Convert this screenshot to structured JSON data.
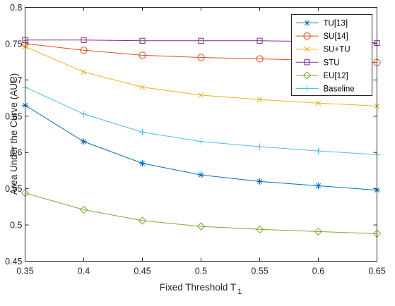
{
  "chart_data": {
    "type": "line",
    "title": "",
    "xlabel": "Fixed Threshold T",
    "xlabel_subscript": "1",
    "ylabel": "Area Under the Curve (AUC)",
    "xlim": [
      0.35,
      0.65
    ],
    "ylim": [
      0.45,
      0.8
    ],
    "x": [
      0.35,
      0.4,
      0.45,
      0.5,
      0.55,
      0.6,
      0.65
    ],
    "x_ticks": [
      "0.35",
      "0.4",
      "0.45",
      "0.5",
      "0.55",
      "0.6",
      "0.65"
    ],
    "y_ticks": [
      "0.45",
      "0.5",
      "0.55",
      "0.6",
      "0.65",
      "0.7",
      "0.75",
      "0.8"
    ],
    "grid": false,
    "legend_position": "top-right",
    "series": [
      {
        "name": "TU[13]",
        "color": "#0072BD",
        "marker": "asterisk",
        "values": [
          0.665,
          0.615,
          0.585,
          0.569,
          0.56,
          0.554,
          0.548
        ]
      },
      {
        "name": "SU[14]",
        "color": "#D95319",
        "marker": "circle",
        "values": [
          0.75,
          0.741,
          0.734,
          0.731,
          0.729,
          0.727,
          0.724
        ]
      },
      {
        "name": "SU+TU",
        "color": "#EDB120",
        "marker": "x",
        "values": [
          0.746,
          0.711,
          0.69,
          0.679,
          0.673,
          0.668,
          0.664
        ]
      },
      {
        "name": "STU",
        "color": "#7E2F8E",
        "marker": "square",
        "values": [
          0.755,
          0.755,
          0.754,
          0.754,
          0.754,
          0.753,
          0.751
        ]
      },
      {
        "name": "EU[12]",
        "color": "#77AC30",
        "marker": "diamond",
        "values": [
          0.544,
          0.521,
          0.506,
          0.498,
          0.494,
          0.491,
          0.488
        ]
      },
      {
        "name": "Baseline",
        "color": "#4DBEEE",
        "marker": "plus",
        "values": [
          0.69,
          0.653,
          0.628,
          0.615,
          0.608,
          0.602,
          0.597
        ]
      }
    ]
  }
}
